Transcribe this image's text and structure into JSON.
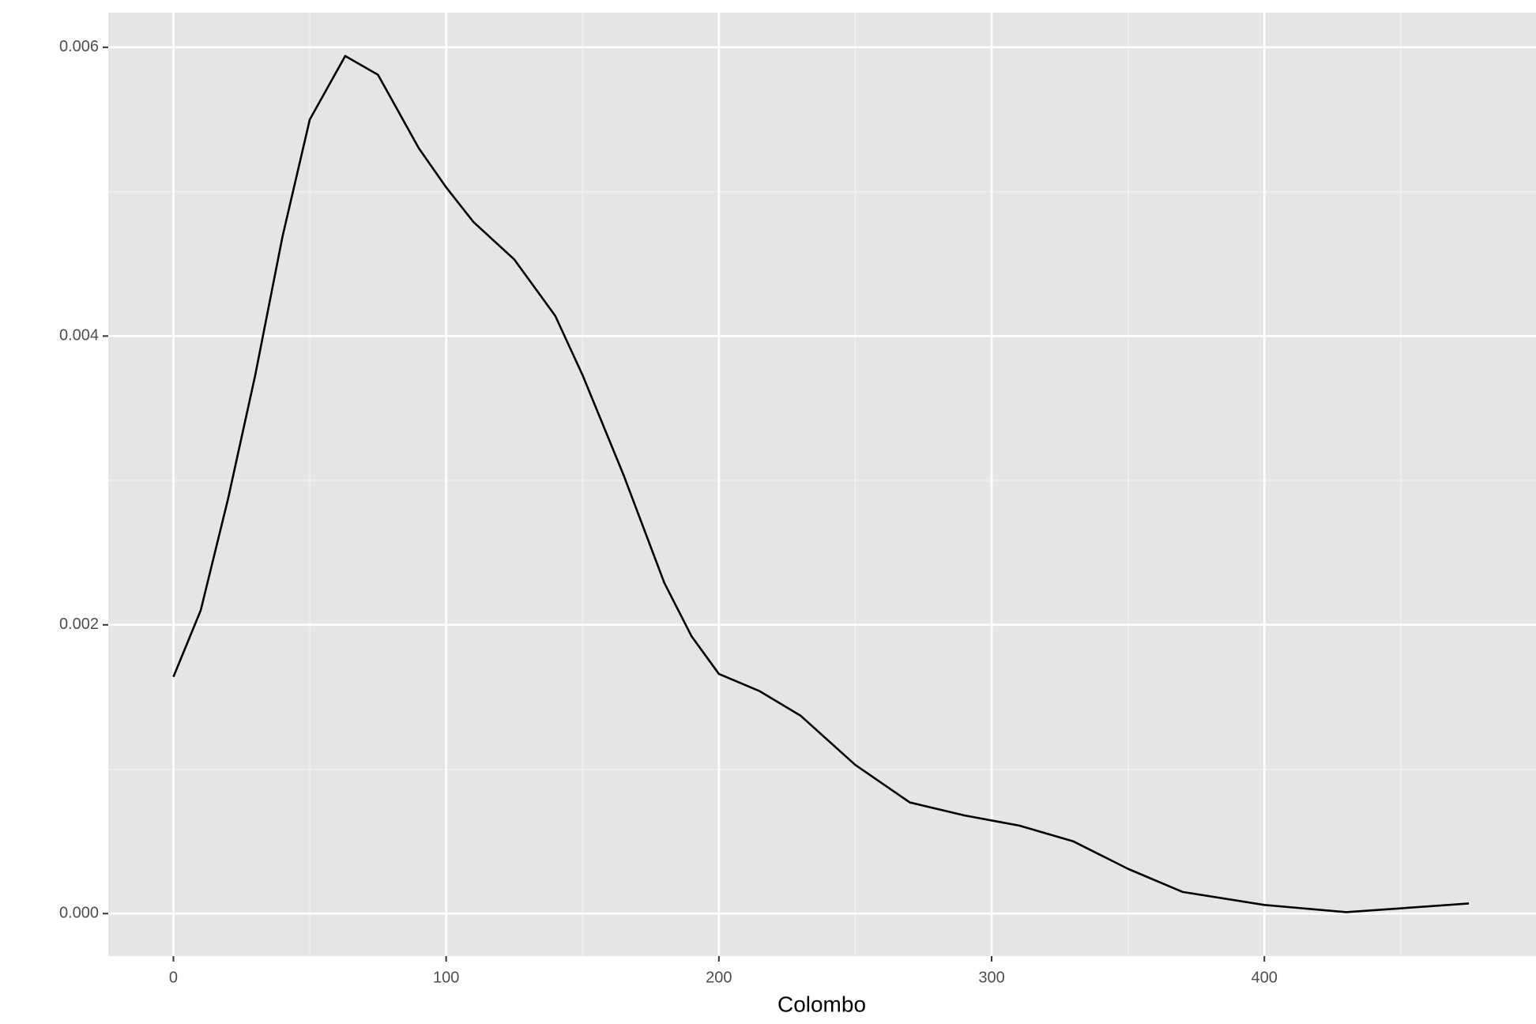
{
  "chart_data": {
    "type": "line",
    "x_label": "Colombo",
    "x": [
      0,
      10,
      20,
      30,
      40,
      50,
      63,
      75,
      90,
      100,
      110,
      125,
      140,
      150,
      165,
      180,
      190,
      200,
      215,
      230,
      250,
      270,
      290,
      310,
      330,
      350,
      370,
      400,
      430,
      475
    ],
    "values": [
      0.00164,
      0.0021,
      0.00287,
      0.00373,
      0.00469,
      0.0055,
      0.00594,
      0.00581,
      0.0053,
      0.00503,
      0.00479,
      0.00453,
      0.00414,
      0.00373,
      0.00304,
      0.00229,
      0.00192,
      0.00166,
      0.00154,
      0.00137,
      0.00103,
      0.00077,
      0.00068,
      0.00061,
      0.0005,
      0.00031,
      0.00015,
      6e-05,
      1e-05,
      7e-05
    ],
    "color": "#000000",
    "xlim": [
      -23.9,
      499.6
    ],
    "ylim": [
      -0.000294,
      0.00624
    ],
    "xticks": [
      0,
      100,
      200,
      300,
      400
    ],
    "yticks": [
      {
        "value": 0,
        "label": "0.000"
      },
      {
        "value": 0.002,
        "label": "0.002"
      },
      {
        "value": 0.004,
        "label": "0.004"
      },
      {
        "value": 0.006,
        "label": "0.006"
      }
    ],
    "x_minor_grid": [
      50,
      150,
      250,
      350,
      450
    ],
    "y_minor_grid": [
      0.001,
      0.003,
      0.005
    ],
    "grid": true
  }
}
